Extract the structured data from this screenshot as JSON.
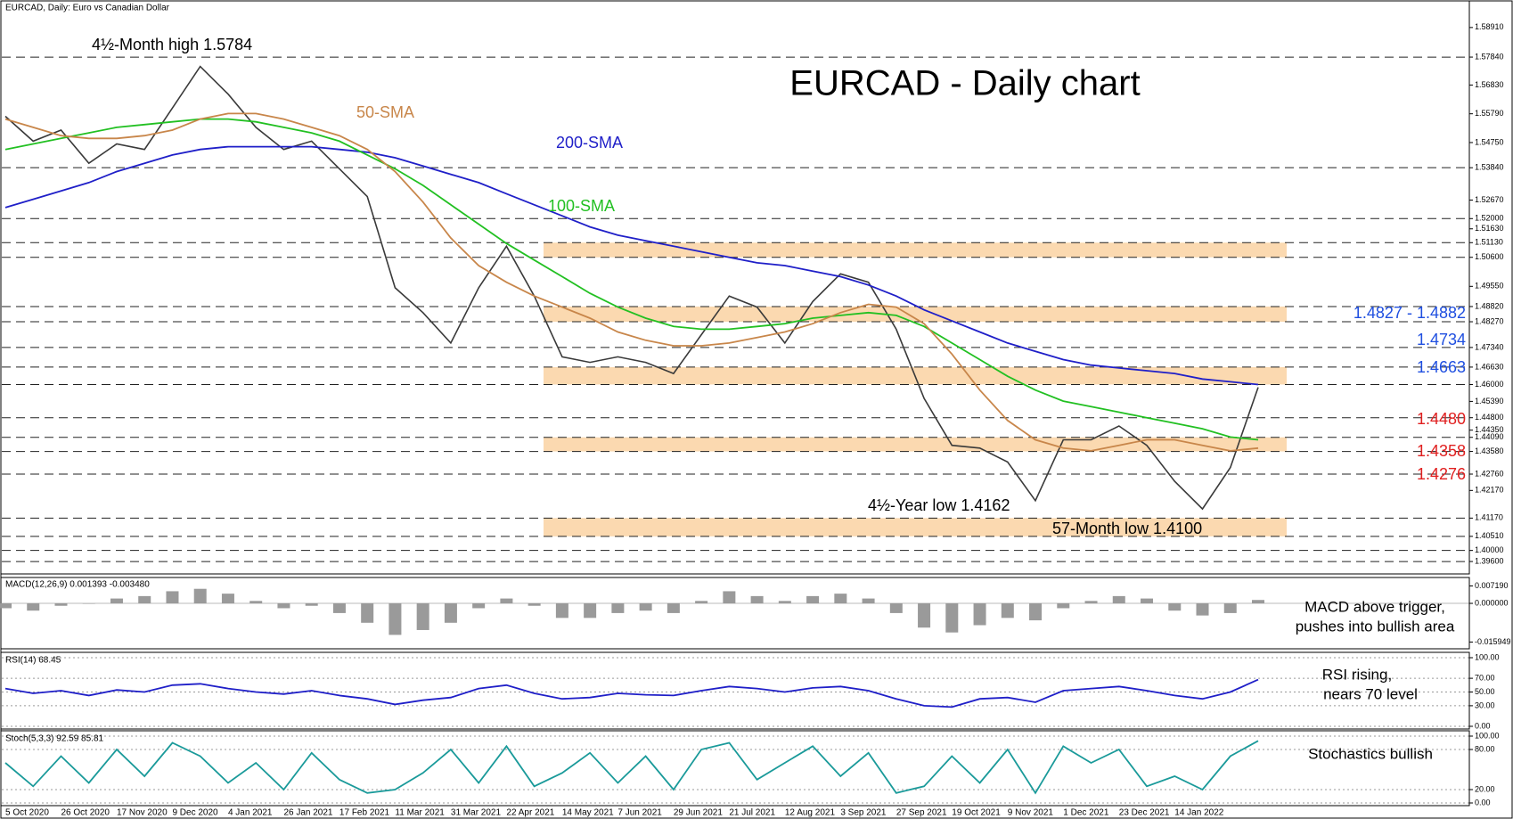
{
  "chart_data": [
    {
      "type": "line",
      "title": "EURCAD - Daily chart",
      "subtitle": "EURCAD, Daily:  Euro vs Canadian Dollar",
      "annotations": [
        "4½-Month high 1.5784",
        "50-SMA",
        "200-SMA",
        "100-SMA",
        "1.4827 - 1.4882",
        "1.4734",
        "1.4663",
        "1.4480",
        "1.4358",
        "1.4276",
        "4½-Year low 1.4162",
        "57-Month low 1.4100"
      ],
      "categories": [
        "5 Oct 2020",
        null,
        "26 Oct 2020",
        null,
        "17 Nov 2020",
        null,
        "9 Dec 2020",
        null,
        "4 Jan 2021",
        null,
        "26 Jan 2021",
        null,
        "17 Feb 2021",
        null,
        "11 Mar 2021",
        null,
        "31 Mar 2021",
        null,
        "22 Apr 2021",
        null,
        "14 May 2021",
        null,
        "7 Jun 2021",
        null,
        "29 Jun 2021",
        null,
        "21 Jul 2021",
        null,
        "12 Aug 2021",
        null,
        "3 Sep 2021",
        null,
        "27 Sep 2021",
        null,
        "19 Oct 2021",
        null,
        "9 Nov 2021",
        null,
        "1 Dec 2021",
        null,
        "23 Dec 2021",
        null,
        "14 Jan 2022",
        null,
        null,
        null
      ],
      "series": [
        {
          "name": "EURCAD",
          "color": "#3a3a3a",
          "values": [
            1.557,
            1.548,
            1.552,
            1.54,
            1.547,
            1.545,
            1.56,
            1.575,
            1.565,
            1.553,
            1.545,
            1.548,
            1.538,
            1.528,
            1.495,
            1.486,
            1.475,
            1.495,
            1.51,
            1.492,
            1.47,
            1.468,
            1.47,
            1.468,
            1.464,
            1.478,
            1.492,
            1.488,
            1.475,
            1.49,
            1.5,
            1.497,
            1.48,
            1.455,
            1.438,
            1.437,
            1.432,
            1.418,
            1.44,
            1.44,
            1.445,
            1.438,
            1.425,
            1.415,
            1.43,
            1.459
          ]
        },
        {
          "name": "200-SMA",
          "color": "#1f1fc8",
          "values": [
            1.524,
            1.527,
            1.53,
            1.533,
            1.537,
            1.54,
            1.543,
            1.545,
            1.546,
            1.546,
            1.546,
            1.546,
            1.545,
            1.544,
            1.542,
            1.539,
            1.536,
            1.533,
            1.529,
            1.525,
            1.521,
            1.517,
            1.514,
            1.512,
            1.51,
            1.508,
            1.506,
            1.504,
            1.503,
            1.501,
            1.499,
            1.496,
            1.492,
            1.487,
            1.483,
            1.479,
            1.475,
            1.472,
            1.469,
            1.467,
            1.466,
            1.465,
            1.464,
            1.462,
            1.461,
            1.46
          ]
        },
        {
          "name": "100-SMA",
          "color": "#22c022",
          "values": [
            1.545,
            1.547,
            1.549,
            1.551,
            1.553,
            1.554,
            1.555,
            1.556,
            1.556,
            1.555,
            1.553,
            1.551,
            1.548,
            1.543,
            1.538,
            1.532,
            1.525,
            1.518,
            1.511,
            1.505,
            1.499,
            1.493,
            1.488,
            1.484,
            1.481,
            1.48,
            1.48,
            1.481,
            1.482,
            1.484,
            1.485,
            1.486,
            1.485,
            1.481,
            1.475,
            1.469,
            1.463,
            1.458,
            1.454,
            1.452,
            1.45,
            1.448,
            1.446,
            1.444,
            1.441,
            1.44
          ]
        },
        {
          "name": "50-SMA",
          "color": "#c8864a",
          "values": [
            1.556,
            1.553,
            1.55,
            1.549,
            1.549,
            1.55,
            1.552,
            1.556,
            1.558,
            1.558,
            1.556,
            1.553,
            1.55,
            1.545,
            1.537,
            1.526,
            1.513,
            1.503,
            1.497,
            1.492,
            1.488,
            1.484,
            1.479,
            1.476,
            1.474,
            1.474,
            1.475,
            1.477,
            1.479,
            1.482,
            1.486,
            1.489,
            1.488,
            1.482,
            1.471,
            1.458,
            1.447,
            1.44,
            1.437,
            1.436,
            1.438,
            1.44,
            1.44,
            1.438,
            1.436,
            1.437
          ]
        }
      ],
      "levels": [
        1.5784,
        1.5384,
        1.52,
        1.5113,
        1.506,
        1.4882,
        1.4827,
        1.4734,
        1.4663,
        1.46,
        1.448,
        1.4409,
        1.4358,
        1.4276,
        1.4117,
        1.4051,
        1.4,
        1.396
      ],
      "zones": [
        [
          1.506,
          1.5113
        ],
        [
          1.4827,
          1.4882
        ],
        [
          1.46,
          1.4663
        ],
        [
          1.4358,
          1.4409
        ],
        [
          1.4051,
          1.4117
        ]
      ],
      "zone_color": "#fbd9b0",
      "ylim": [
        1.3928,
        1.5955
      ],
      "yticks": [
        {
          "value": 1.5891,
          "label": "1.58910"
        },
        {
          "value": 1.5784,
          "label": "1.57840"
        },
        {
          "value": 1.5683,
          "label": "1.56830"
        },
        {
          "value": 1.5579,
          "label": "1.55790"
        },
        {
          "value": 1.5475,
          "label": "1.54750"
        },
        {
          "value": 1.5384,
          "label": "1.53840"
        },
        {
          "value": 1.5267,
          "label": "1.52670"
        },
        {
          "value": 1.52,
          "label": "1.52000"
        },
        {
          "value": 1.5163,
          "label": "1.51630"
        },
        {
          "value": 1.5113,
          "label": "1.51130"
        },
        {
          "value": 1.506,
          "label": "1.50600"
        },
        {
          "value": 1.4955,
          "label": "1.49550"
        },
        {
          "value": 1.4882,
          "label": "1.48820"
        },
        {
          "value": 1.4827,
          "label": "1.48270"
        },
        {
          "value": 1.4734,
          "label": "1.47340"
        },
        {
          "value": 1.4663,
          "label": "1.46630"
        },
        {
          "value": 1.46,
          "label": "1.46000"
        },
        {
          "value": 1.4539,
          "label": "1.45390"
        },
        {
          "value": 1.448,
          "label": "1.44800"
        },
        {
          "value": 1.4435,
          "label": "1.44350"
        },
        {
          "value": 1.4409,
          "label": "1.44090"
        },
        {
          "value": 1.4358,
          "label": "1.43580"
        },
        {
          "value": 1.4276,
          "label": "1.42760"
        },
        {
          "value": 1.4217,
          "label": "1.42170"
        },
        {
          "value": 1.4117,
          "label": "1.41170"
        },
        {
          "value": 1.4051,
          "label": "1.40510"
        },
        {
          "value": 1.4,
          "label": "1.40000"
        },
        {
          "value": 1.396,
          "label": "1.39600"
        }
      ],
      "grid": false
    },
    {
      "type": "bar",
      "title": "MACD(12,26,9) 0.001393 -0.003480",
      "annotations": [
        "MACD above trigger,",
        "pushes into bullish area"
      ],
      "color": "#9a9a9a",
      "values": [
        -0.002,
        -0.003,
        -0.001,
        0.0,
        0.002,
        0.003,
        0.005,
        0.006,
        0.004,
        0.001,
        -0.002,
        -0.001,
        -0.004,
        -0.008,
        -0.013,
        -0.011,
        -0.008,
        -0.002,
        0.002,
        -0.001,
        -0.006,
        -0.006,
        -0.004,
        -0.003,
        -0.004,
        0.001,
        0.005,
        0.003,
        0.001,
        0.003,
        0.004,
        0.002,
        -0.004,
        -0.01,
        -0.012,
        -0.009,
        -0.006,
        -0.007,
        -0.002,
        0.001,
        0.003,
        0.002,
        -0.003,
        -0.005,
        -0.004,
        0.0014
      ],
      "ylim": [
        -0.018,
        0.0092
      ],
      "yticks": [
        {
          "value": 0.00719,
          "label": "0.007190"
        },
        {
          "value": 0,
          "label": "0.000000"
        },
        {
          "value": -0.015949,
          "label": "-0.015949"
        }
      ],
      "grid": false
    },
    {
      "type": "line",
      "title": "RSI(14) 68.45",
      "annotations": [
        "RSI rising,",
        "nears 70 level"
      ],
      "series": [
        {
          "name": "RSI(14)",
          "color": "#1f1fc8",
          "values": [
            55,
            48,
            52,
            45,
            53,
            50,
            60,
            62,
            55,
            50,
            47,
            52,
            45,
            40,
            32,
            38,
            42,
            55,
            60,
            48,
            40,
            42,
            48,
            46,
            45,
            52,
            58,
            55,
            50,
            56,
            58,
            52,
            40,
            30,
            28,
            40,
            42,
            35,
            52,
            55,
            58,
            52,
            45,
            40,
            50,
            68
          ]
        }
      ],
      "ylim": [
        0,
        100
      ],
      "yticks": [
        {
          "value": 100,
          "label": "100.00"
        },
        {
          "value": 70,
          "label": "70.00"
        },
        {
          "value": 50,
          "label": "50.00"
        },
        {
          "value": 30,
          "label": "30.00"
        },
        {
          "value": 0,
          "label": "0.00"
        }
      ],
      "grid": true
    },
    {
      "type": "line",
      "title": "Stoch(5,3,3) 92.59 85.81",
      "annotations": [
        "Stochastics bullish"
      ],
      "series": [
        {
          "name": "Stoch(5,3,3)",
          "color": "#1a9a9a",
          "values": [
            60,
            25,
            70,
            30,
            80,
            40,
            90,
            70,
            30,
            60,
            20,
            75,
            35,
            15,
            20,
            45,
            80,
            30,
            85,
            25,
            45,
            75,
            30,
            70,
            20,
            80,
            90,
            35,
            60,
            85,
            40,
            75,
            15,
            25,
            70,
            30,
            80,
            15,
            85,
            60,
            80,
            25,
            40,
            20,
            70,
            93
          ]
        }
      ],
      "ylim": [
        0,
        100
      ],
      "yticks": [
        {
          "value": 100,
          "label": "100.00"
        },
        {
          "value": 80,
          "label": "80.00"
        },
        {
          "value": 20,
          "label": "20.00"
        },
        {
          "value": 0,
          "label": "0.00"
        }
      ],
      "grid": true
    }
  ]
}
